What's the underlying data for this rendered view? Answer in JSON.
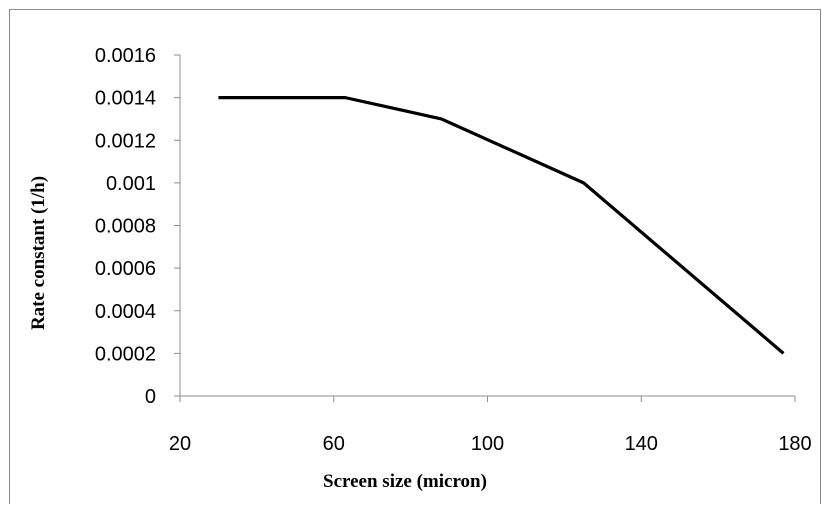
{
  "chart_data": {
    "type": "line",
    "title": "",
    "xlabel": "Screen size (micron)",
    "ylabel": "Rate constant (1/h)",
    "xlim": [
      20,
      180
    ],
    "ylim": [
      0,
      0.0016
    ],
    "x_ticks": [
      "20",
      "60",
      "100",
      "140",
      "180"
    ],
    "y_ticks": [
      "0",
      "0.0002",
      "0.0004",
      "0.0006",
      "0.0008",
      "0.001",
      "0.0012",
      "0.0014",
      "0.0016"
    ],
    "grid": false,
    "legend": "none",
    "line_color": "#000000",
    "series": [
      {
        "x": [
          30,
          63,
          88,
          125,
          177
        ],
        "values": [
          0.0014,
          0.0014,
          0.0013,
          0.001,
          0.0002
        ]
      }
    ]
  }
}
